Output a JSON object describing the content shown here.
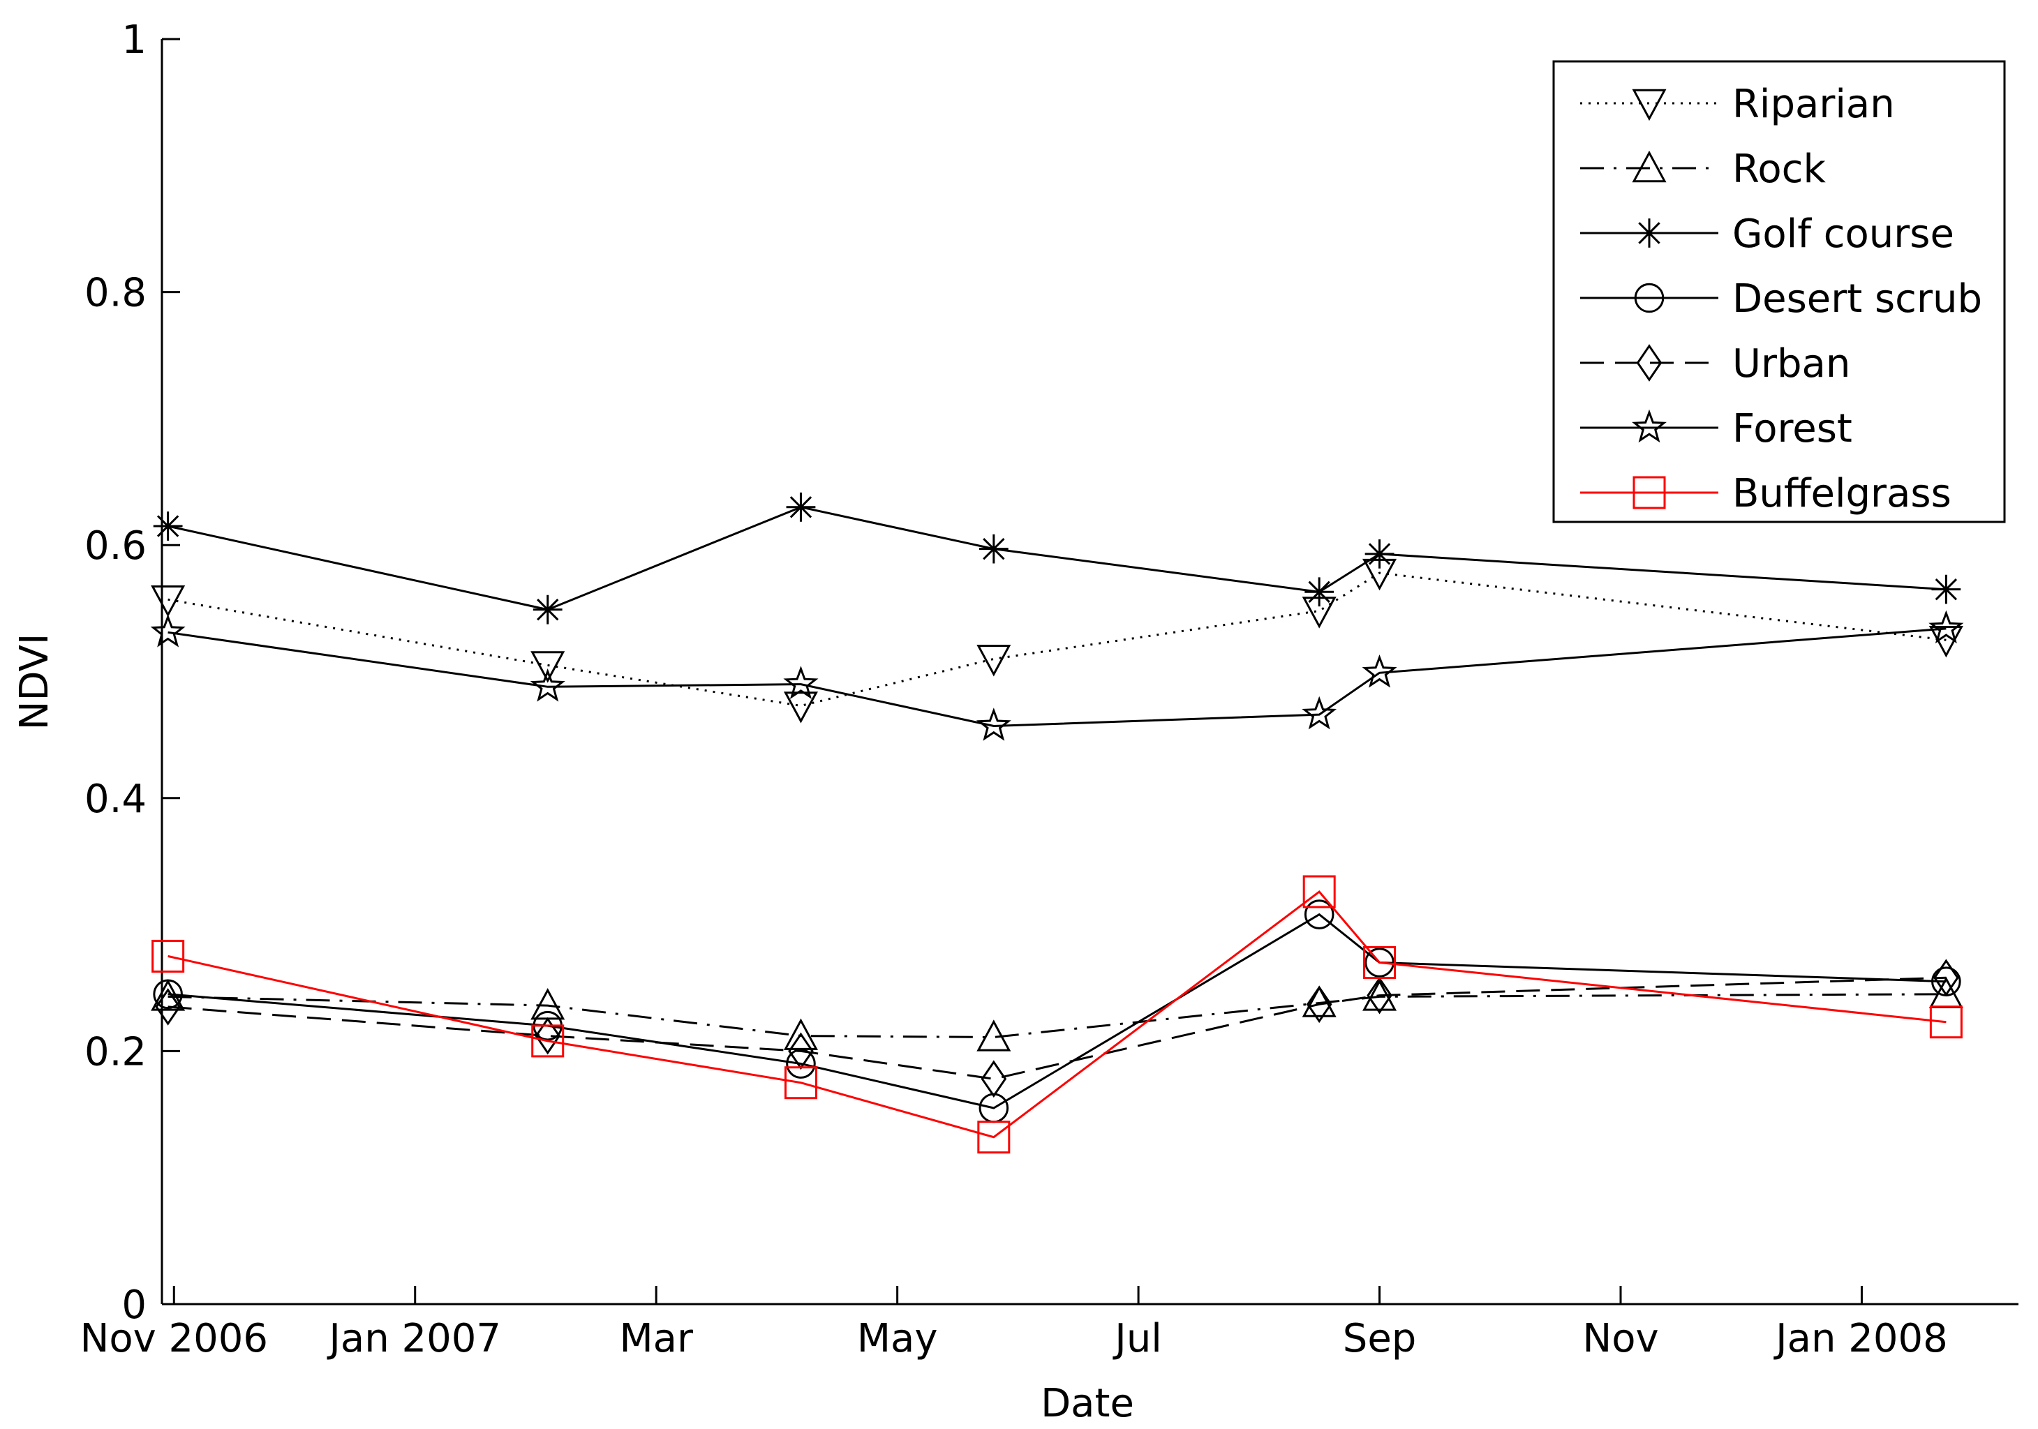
{
  "chart_data": {
    "type": "line",
    "title": "",
    "xlabel": "Date",
    "ylabel": "NDVI",
    "ylim": [
      0,
      1
    ],
    "yticks": [
      0,
      0.2,
      0.4,
      0.6,
      0.8,
      1
    ],
    "ytick_labels": [
      "0",
      "0.2",
      "0.4",
      "0.6",
      "0.8",
      "1"
    ],
    "xlim": [
      -0.1,
      15.3
    ],
    "xticks": [
      0,
      2,
      4,
      6,
      8,
      10,
      12,
      14
    ],
    "xtick_labels": [
      "Nov 2006",
      "Jan 2007",
      "Mar",
      "May",
      "Jul",
      "Sep",
      "Nov",
      "Jan 2008"
    ],
    "x_units": "months since Nov 1 2006",
    "legend_position": "top-right",
    "series": [
      {
        "name": "Riparian",
        "color": "#000000",
        "line": "dotted",
        "marker": "triangle-down",
        "x": [
          -0.05,
          3.1,
          5.2,
          6.8,
          9.5,
          10.0,
          14.7
        ],
        "y": [
          0.557,
          0.505,
          0.473,
          0.51,
          0.548,
          0.578,
          0.525
        ]
      },
      {
        "name": "Rock",
        "color": "#000000",
        "line": "dashdot",
        "marker": "triangle-up",
        "x": [
          -0.05,
          3.1,
          5.2,
          6.8,
          9.5,
          10.0,
          14.7
        ],
        "y": [
          0.243,
          0.236,
          0.212,
          0.211,
          0.238,
          0.243,
          0.245
        ]
      },
      {
        "name": "Golf course",
        "color": "#000000",
        "line": "solid",
        "marker": "asterisk",
        "x": [
          -0.05,
          3.1,
          5.2,
          6.8,
          9.5,
          10.0,
          14.7
        ],
        "y": [
          0.615,
          0.549,
          0.63,
          0.597,
          0.563,
          0.593,
          0.565
        ]
      },
      {
        "name": "Desert scrub",
        "color": "#000000",
        "line": "solid",
        "marker": "circle",
        "x": [
          -0.05,
          3.1,
          5.2,
          6.8,
          9.5,
          10.0,
          14.7
        ],
        "y": [
          0.245,
          0.22,
          0.19,
          0.155,
          0.308,
          0.27,
          0.255
        ]
      },
      {
        "name": "Urban",
        "color": "#000000",
        "line": "dashed",
        "marker": "diamond",
        "x": [
          -0.05,
          3.1,
          5.2,
          6.8,
          9.5,
          10.0,
          14.7
        ],
        "y": [
          0.235,
          0.212,
          0.2,
          0.178,
          0.237,
          0.244,
          0.258
        ]
      },
      {
        "name": "Forest",
        "color": "#000000",
        "line": "solid",
        "marker": "pentagram",
        "x": [
          -0.05,
          3.1,
          5.2,
          6.8,
          9.5,
          10.0,
          14.7
        ],
        "y": [
          0.531,
          0.488,
          0.49,
          0.457,
          0.466,
          0.499,
          0.534
        ]
      },
      {
        "name": "Buffelgrass",
        "color": "#ff0000",
        "line": "solid",
        "marker": "square",
        "x": [
          -0.05,
          3.1,
          5.2,
          6.8,
          9.5,
          10.0,
          14.7
        ],
        "y": [
          0.275,
          0.208,
          0.175,
          0.132,
          0.326,
          0.27,
          0.223
        ]
      }
    ]
  }
}
